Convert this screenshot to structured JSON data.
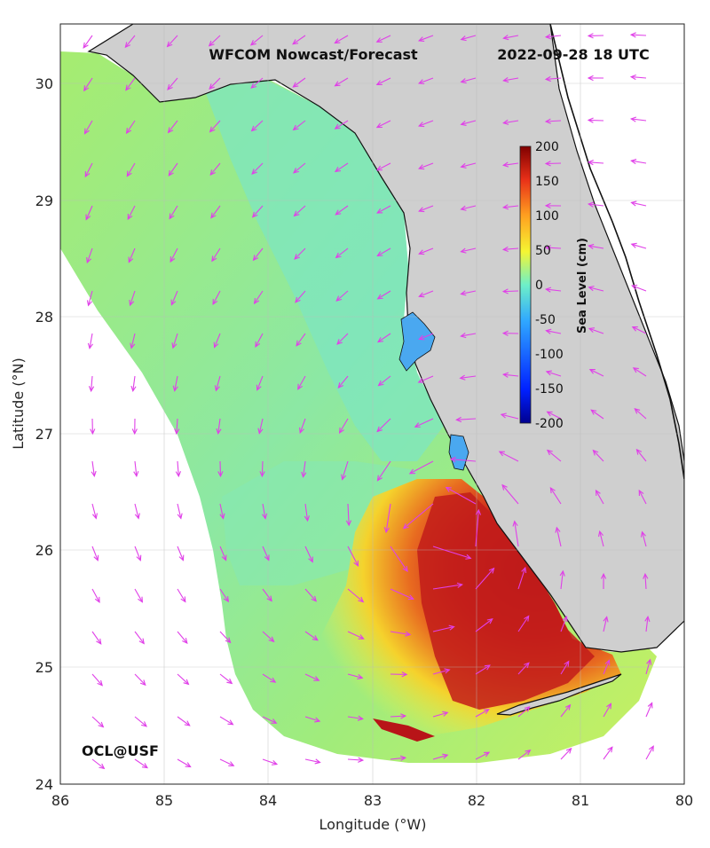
{
  "chart_data": {
    "type": "map",
    "title_left": "WFCOM Nowcast/Forecast",
    "title_right": "2022-09-28 18 UTC",
    "xlabel": "Longitude (°W)",
    "ylabel": "Latitude (°N)",
    "x_ticks": [
      "86",
      "85",
      "84",
      "83",
      "82",
      "81",
      "80"
    ],
    "y_ticks": [
      "24",
      "25",
      "26",
      "27",
      "28",
      "29",
      "30"
    ],
    "xlim": [
      86,
      80
    ],
    "ylim": [
      24,
      30.5
    ],
    "grid": true,
    "colorbar": {
      "label": "Sea Level (cm)",
      "ticks": [
        "200",
        "150",
        "100",
        "50",
        "0",
        "-50",
        "-100",
        "-150",
        "-200"
      ],
      "range": [
        -200,
        200
      ],
      "placement": "upper-right, inside axes"
    },
    "credit": "OCL@USF",
    "colors": {
      "land": "#cfcfcf",
      "arrow": "#e040e8",
      "surge_max": "#b0141a",
      "offshore": "#a8ec6a"
    }
  }
}
